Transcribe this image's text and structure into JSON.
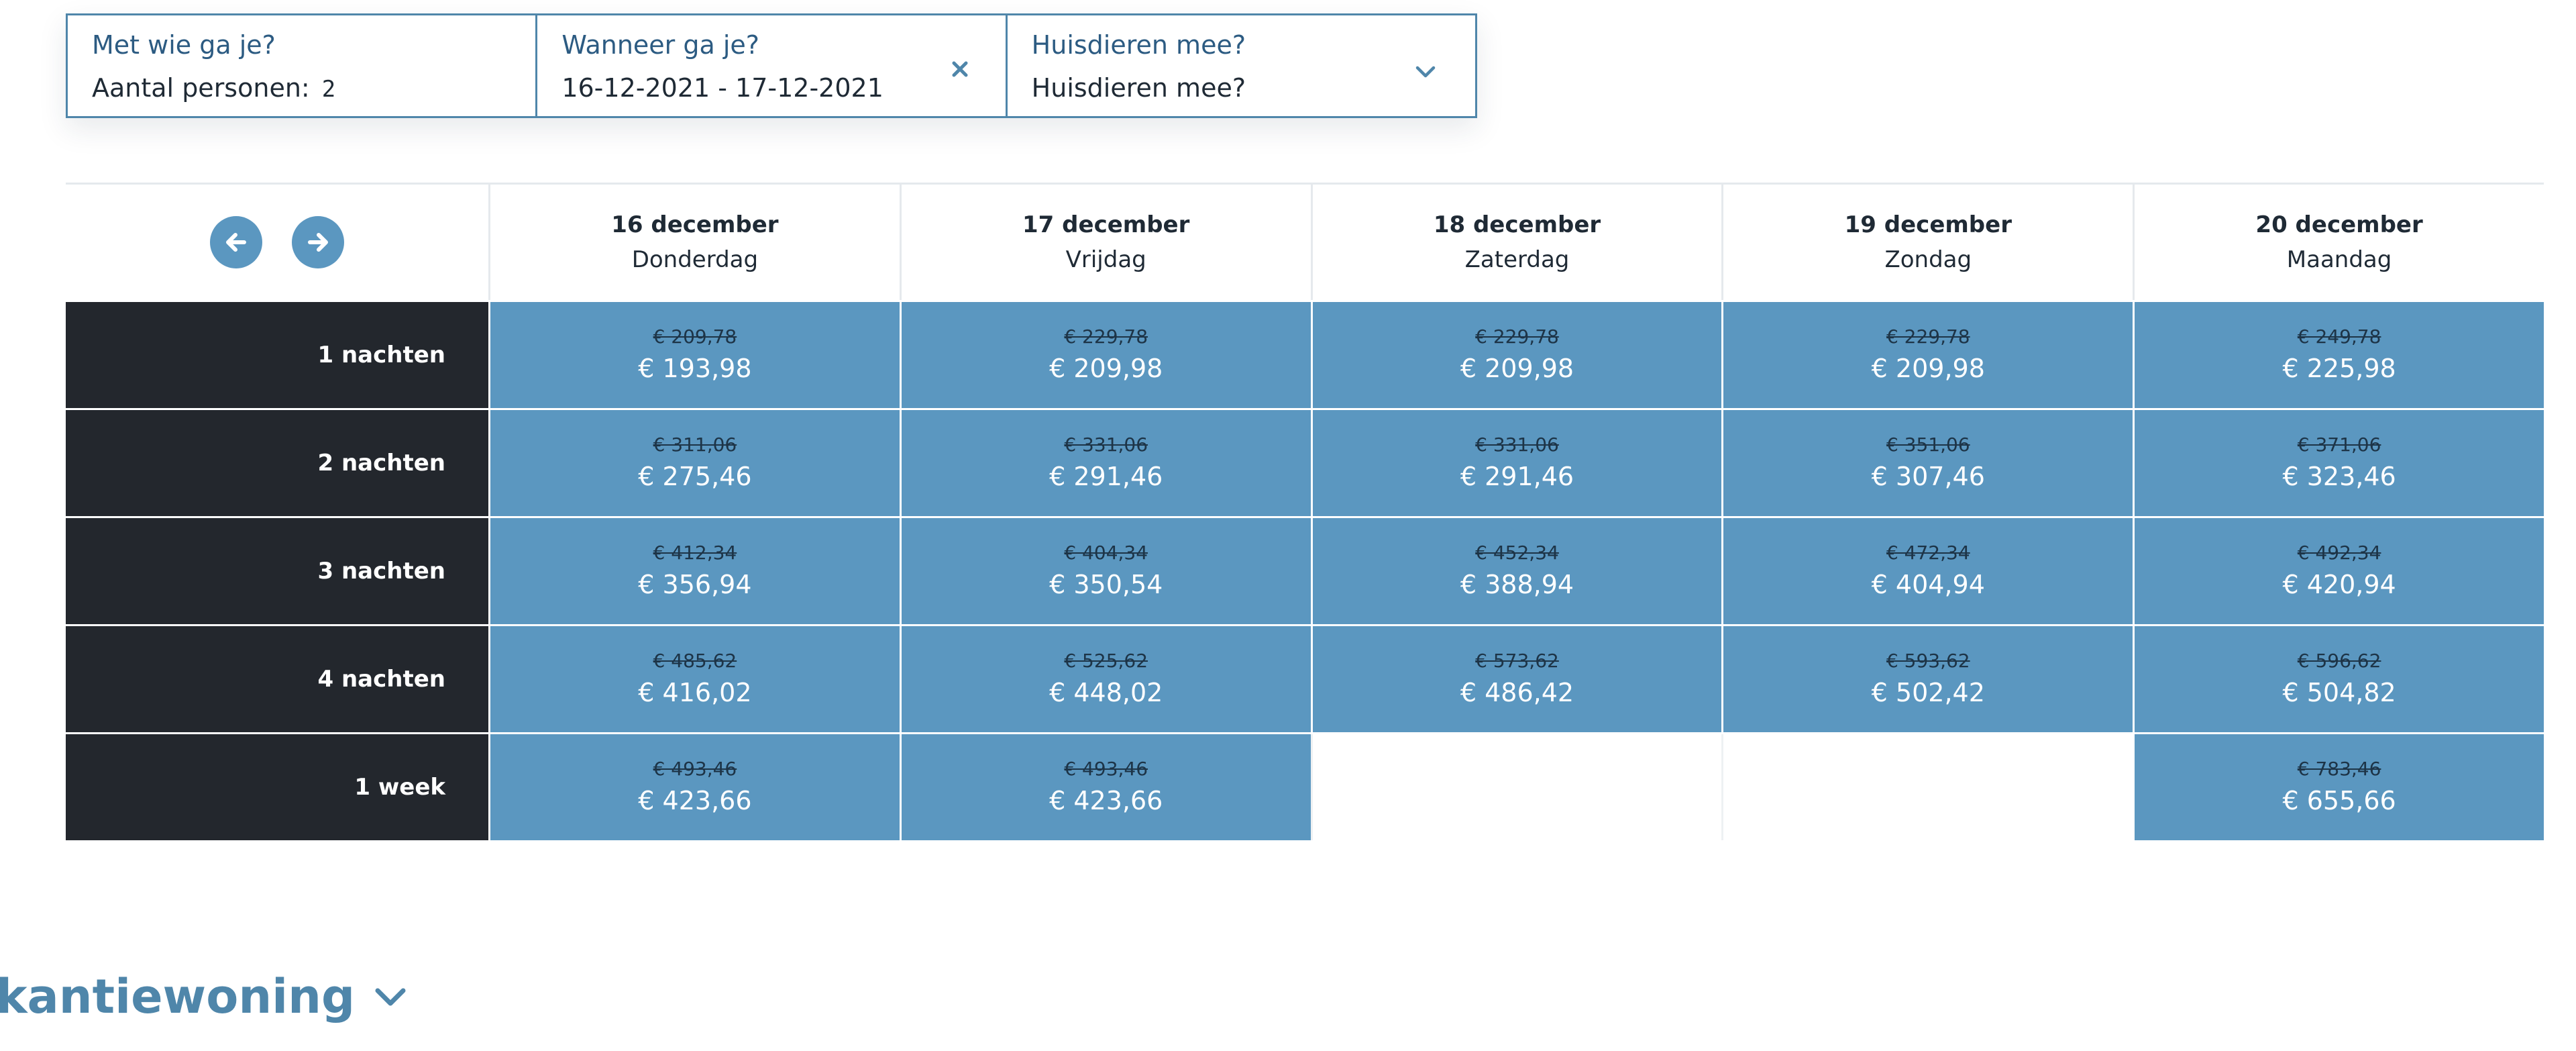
{
  "filters": {
    "who": {
      "label": "Met wie ga je?",
      "value_label": "Aantal personen:",
      "value_count": "2"
    },
    "when": {
      "label": "Wanneer ga je?",
      "value": "16-12-2021 - 17-12-2021",
      "clear_icon": "close-icon"
    },
    "pets": {
      "label": "Huisdieren mee?",
      "value": "Huisdieren mee?",
      "dropdown_icon": "chevron-down-icon"
    }
  },
  "grid": {
    "nav": {
      "prev_icon": "arrow-left-icon",
      "next_icon": "arrow-right-icon"
    },
    "days": [
      {
        "date": "16 december",
        "weekday": "Donderdag"
      },
      {
        "date": "17 december",
        "weekday": "Vrijdag"
      },
      {
        "date": "18 december",
        "weekday": "Zaterdag"
      },
      {
        "date": "19 december",
        "weekday": "Zondag"
      },
      {
        "date": "20 december",
        "weekday": "Maandag"
      }
    ],
    "rows": [
      {
        "label": "1 nachten",
        "cells": [
          {
            "old": "€ 209,78",
            "new": "€ 193,98"
          },
          {
            "old": "€ 229,78",
            "new": "€ 209,98"
          },
          {
            "old": "€ 229,78",
            "new": "€ 209,98"
          },
          {
            "old": "€ 229,78",
            "new": "€ 209,98"
          },
          {
            "old": "€ 249,78",
            "new": "€ 225,98"
          }
        ]
      },
      {
        "label": "2 nachten",
        "cells": [
          {
            "old": "€ 311,06",
            "new": "€ 275,46"
          },
          {
            "old": "€ 331,06",
            "new": "€ 291,46"
          },
          {
            "old": "€ 331,06",
            "new": "€ 291,46"
          },
          {
            "old": "€ 351,06",
            "new": "€ 307,46"
          },
          {
            "old": "€ 371,06",
            "new": "€ 323,46"
          }
        ]
      },
      {
        "label": "3 nachten",
        "cells": [
          {
            "old": "€ 412,34",
            "new": "€ 356,94"
          },
          {
            "old": "€ 404,34",
            "new": "€ 350,54"
          },
          {
            "old": "€ 452,34",
            "new": "€ 388,94"
          },
          {
            "old": "€ 472,34",
            "new": "€ 404,94"
          },
          {
            "old": "€ 492,34",
            "new": "€ 420,94"
          }
        ]
      },
      {
        "label": "4 nachten",
        "cells": [
          {
            "old": "€ 485,62",
            "new": "€ 416,02"
          },
          {
            "old": "€ 525,62",
            "new": "€ 448,02"
          },
          {
            "old": "€ 573,62",
            "new": "€ 486,42"
          },
          {
            "old": "€ 593,62",
            "new": "€ 502,42"
          },
          {
            "old": "€ 596,62",
            "new": "€ 504,82"
          }
        ]
      },
      {
        "label": "1 week",
        "cells": [
          {
            "old": "€ 493,46",
            "new": "€ 423,66"
          },
          {
            "old": "€ 493,46",
            "new": "€ 423,66"
          },
          null,
          null,
          {
            "old": "€ 783,46",
            "new": "€ 655,66"
          }
        ]
      }
    ]
  },
  "section": {
    "heading": "kantiewoning",
    "toggle_icon": "chevron-down-icon"
  },
  "colors": {
    "accent": "#5b97c0",
    "border": "#4f86aa",
    "row_label_bg": "#23272d",
    "old_price": "#1d3447"
  }
}
